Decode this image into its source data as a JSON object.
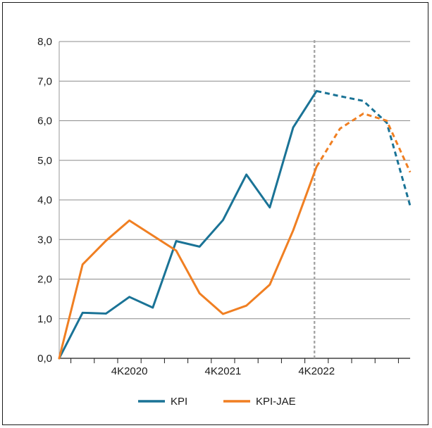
{
  "chart_data": {
    "type": "line",
    "title": "",
    "xlabel": "",
    "ylabel": "",
    "ylim": [
      0,
      8
    ],
    "yticks": [
      "0,0",
      "1,0",
      "2,0",
      "3,0",
      "4,0",
      "5,0",
      "6,0",
      "7,0",
      "8,0"
    ],
    "x_ticklabels": [
      {
        "index": 3,
        "label": "4K2020"
      },
      {
        "index": 7,
        "label": "4K2021"
      },
      {
        "index": 11,
        "label": "4K2022"
      }
    ],
    "n_periods": 16,
    "forecast_start_index": 11,
    "grid": true,
    "legend_position": "bottom",
    "series": [
      {
        "name": "KPI",
        "color": "#1a7396",
        "values": [
          0.0,
          1.15,
          1.13,
          1.55,
          1.28,
          2.96,
          2.82,
          3.49,
          4.64,
          3.81,
          5.83,
          6.75,
          6.62,
          6.5,
          5.95,
          3.85
        ]
      },
      {
        "name": "KPI-JAE",
        "color": "#f07f22",
        "values": [
          0.0,
          2.37,
          2.97,
          3.48,
          3.1,
          2.72,
          1.64,
          1.12,
          1.33,
          1.86,
          3.23,
          4.84,
          5.8,
          6.18,
          6.0,
          4.7
        ]
      }
    ]
  }
}
